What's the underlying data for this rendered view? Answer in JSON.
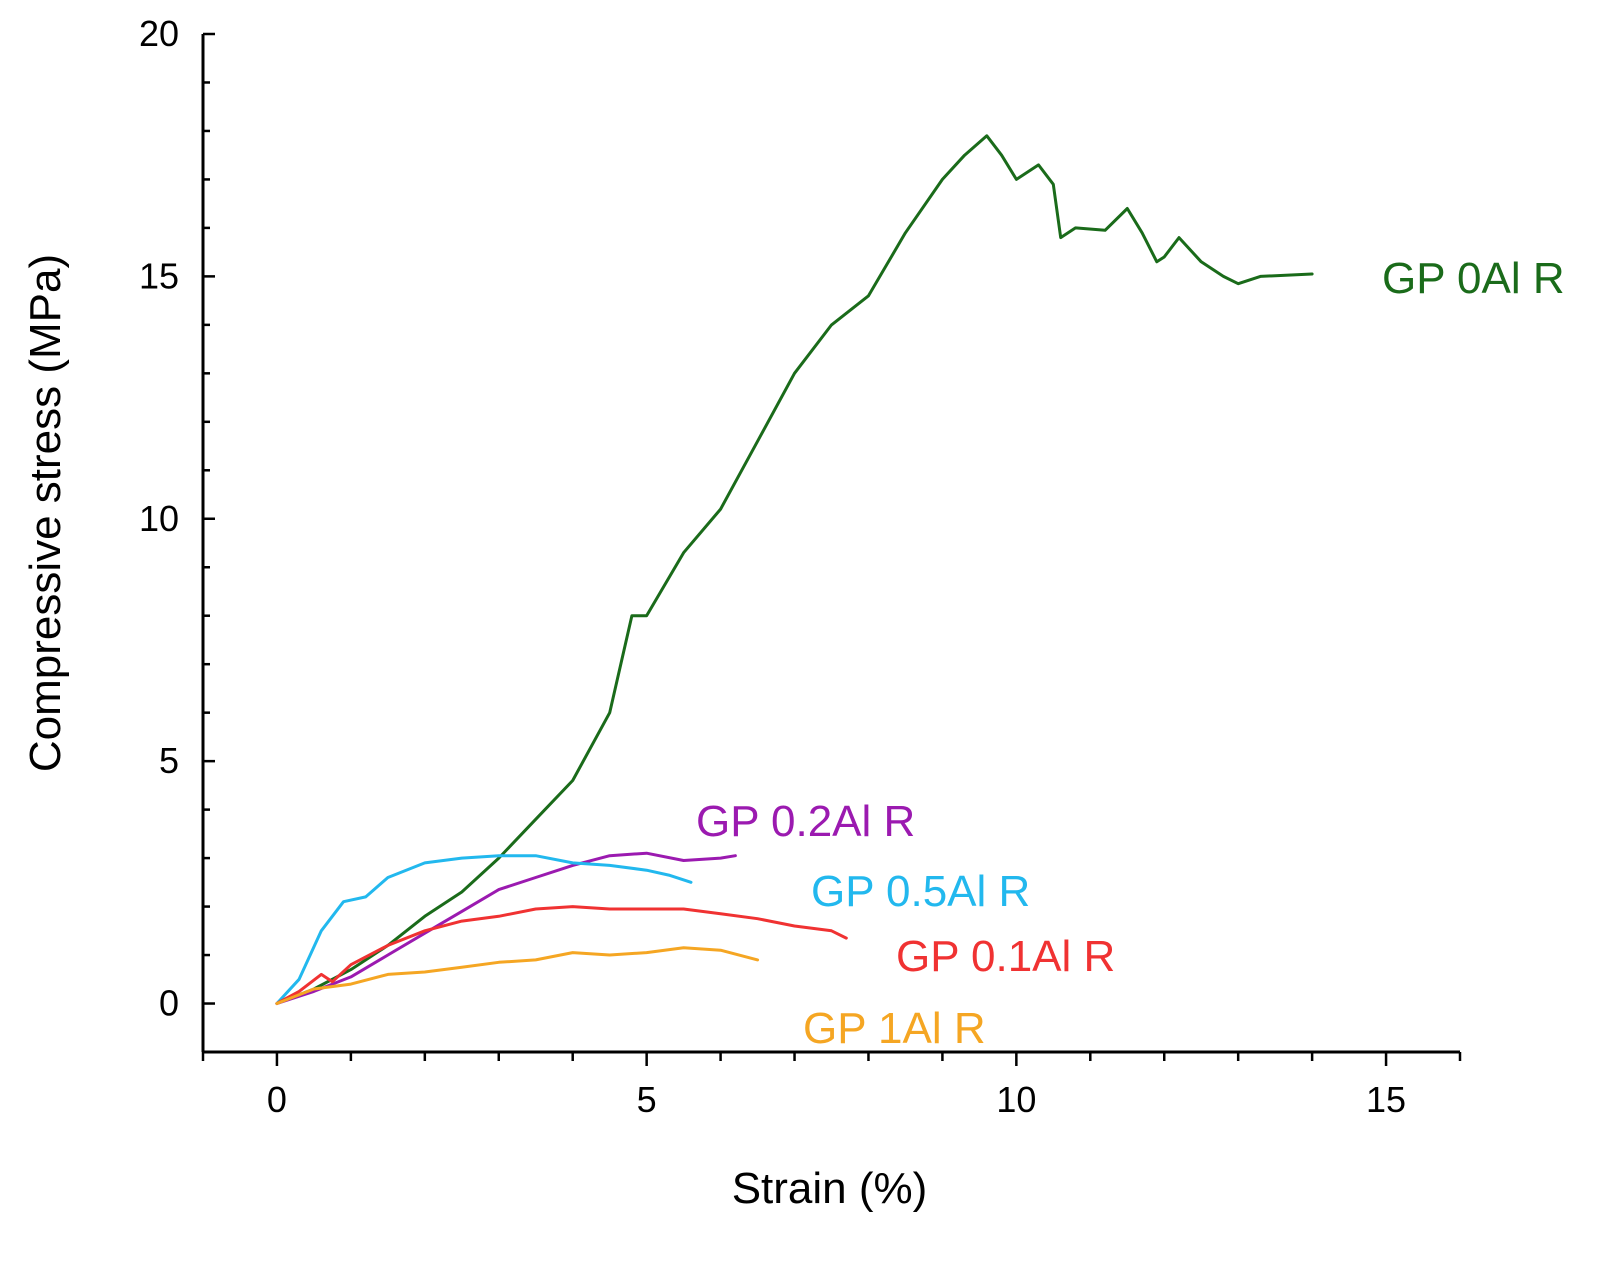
{
  "chart_data": {
    "type": "line",
    "title": "",
    "xlabel": "Strain (%)",
    "ylabel": "Compressive stress (MPa)",
    "xlim": [
      -1,
      16
    ],
    "ylim": [
      -1,
      20
    ],
    "xticks": [
      0,
      5,
      10,
      15
    ],
    "xtick_labels": [
      "0",
      "5",
      "10",
      "15"
    ],
    "yticks": [
      0,
      5,
      10,
      15,
      20
    ],
    "ytick_labels": [
      "0",
      "5",
      "10",
      "15",
      "20"
    ],
    "grid": false,
    "legend": "inline labels next to each curve",
    "series": [
      {
        "name": "GP 0Al R",
        "color": "#1a6b1a",
        "x": [
          0,
          0.5,
          1,
          1.5,
          2,
          2.5,
          3,
          3.5,
          4,
          4.5,
          4.8,
          5,
          5.5,
          6,
          6.5,
          7,
          7.5,
          8,
          8.5,
          9,
          9.3,
          9.6,
          9.8,
          10,
          10.3,
          10.5,
          10.6,
          10.8,
          11.2,
          11.5,
          11.7,
          11.9,
          12,
          12.2,
          12.5,
          12.8,
          13,
          13.3,
          14
        ],
        "y": [
          0,
          0.3,
          0.7,
          1.2,
          1.8,
          2.3,
          3.0,
          3.8,
          4.6,
          6.0,
          8.0,
          8.0,
          9.3,
          10.2,
          11.6,
          13.0,
          14.0,
          14.6,
          15.9,
          17.0,
          17.5,
          17.9,
          17.5,
          17.0,
          17.3,
          16.9,
          15.8,
          16.0,
          15.95,
          16.4,
          15.9,
          15.3,
          15.4,
          15.8,
          15.3,
          15.0,
          14.85,
          15.0,
          15.05
        ]
      },
      {
        "name": "GP 0.2Al R",
        "color": "#9b1ab0",
        "x": [
          0,
          0.5,
          1,
          1.5,
          2,
          2.5,
          3,
          3.5,
          4,
          4.5,
          5,
          5.5,
          6,
          6.2
        ],
        "y": [
          0,
          0.25,
          0.55,
          1.0,
          1.45,
          1.9,
          2.35,
          2.6,
          2.85,
          3.05,
          3.1,
          2.95,
          3.0,
          3.05
        ]
      },
      {
        "name": "GP 0.5Al R",
        "color": "#22b8ee",
        "x": [
          0,
          0.3,
          0.6,
          0.9,
          1.2,
          1.5,
          2,
          2.5,
          3,
          3.5,
          4,
          4.5,
          5,
          5.3,
          5.6
        ],
        "y": [
          0,
          0.5,
          1.5,
          2.1,
          2.2,
          2.6,
          2.9,
          3.0,
          3.05,
          3.05,
          2.9,
          2.85,
          2.75,
          2.65,
          2.5
        ]
      },
      {
        "name": "GP 0.1Al R",
        "color": "#f03232",
        "x": [
          0,
          0.3,
          0.6,
          0.75,
          1,
          1.5,
          2,
          2.5,
          3,
          3.5,
          4,
          4.5,
          5,
          5.5,
          6,
          6.5,
          7,
          7.5,
          7.7
        ],
        "y": [
          0,
          0.25,
          0.6,
          0.45,
          0.8,
          1.2,
          1.5,
          1.7,
          1.8,
          1.95,
          2.0,
          1.95,
          1.95,
          1.95,
          1.85,
          1.75,
          1.6,
          1.5,
          1.35
        ]
      },
      {
        "name": "GP 1Al R",
        "color": "#f5a623",
        "x": [
          0,
          0.5,
          1,
          1.5,
          2,
          2.5,
          3,
          3.5,
          4,
          4.5,
          5,
          5.5,
          6,
          6.5
        ],
        "y": [
          0,
          0.3,
          0.4,
          0.6,
          0.65,
          0.75,
          0.85,
          0.9,
          1.05,
          1.0,
          1.05,
          1.15,
          1.1,
          0.9
        ]
      }
    ]
  }
}
